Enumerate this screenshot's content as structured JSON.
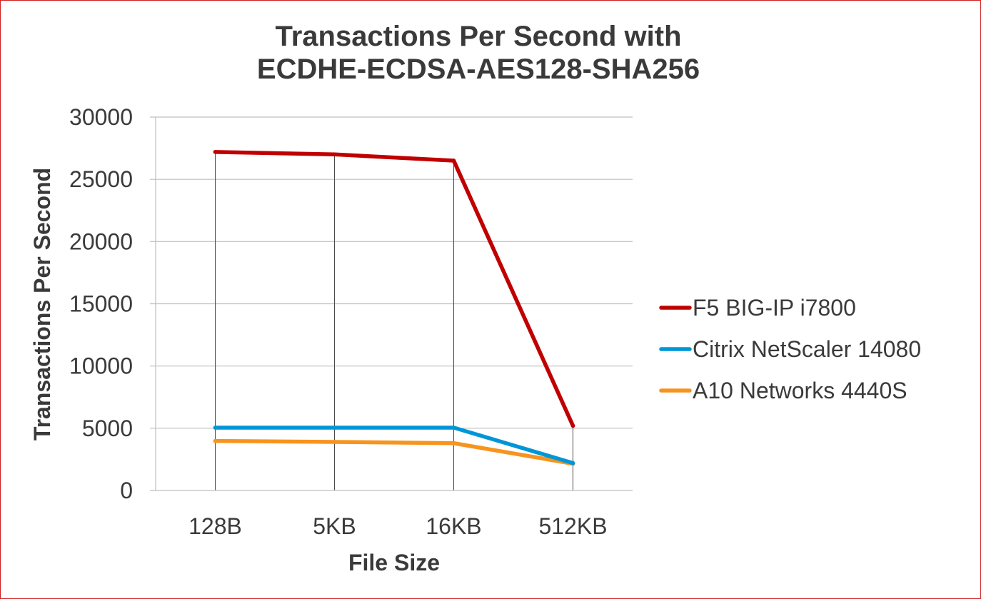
{
  "chart_data": {
    "type": "line",
    "title": [
      "Transactions Per Second with",
      "ECDHE-ECDSA-AES128-SHA256"
    ],
    "xlabel": "File Size",
    "ylabel": "Transactions Per Second",
    "categories": [
      "128B",
      "5KB",
      "16KB",
      "512KB"
    ],
    "ylim": [
      0,
      30000
    ],
    "yticks": [
      0,
      5000,
      10000,
      15000,
      20000,
      25000,
      30000
    ],
    "grid": true,
    "legend_position": "right",
    "drop_lines": true,
    "series": [
      {
        "name": "F5 BIG-IP i7800",
        "color": "#c00000",
        "values": [
          27200,
          27000,
          26500,
          5200
        ]
      },
      {
        "name": "Citrix NetScaler 14080",
        "color": "#0096d6",
        "values": [
          5050,
          5050,
          5050,
          2200
        ]
      },
      {
        "name": "A10 Networks 4440S",
        "color": "#f7941d",
        "values": [
          3980,
          3900,
          3800,
          2150
        ]
      }
    ]
  }
}
